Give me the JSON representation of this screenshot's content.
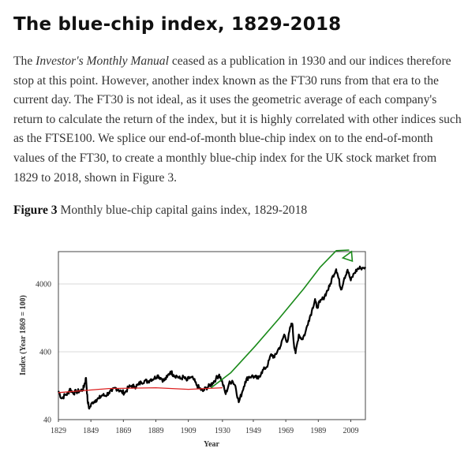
{
  "heading": "The blue-chip index, 1829-2018",
  "paragraph": {
    "p1": "The ",
    "em": "Investor's Monthly Manual",
    "p2": " ceased as a publication in 1930 and our indices therefore stop at this point. However, another index known as the FT30 runs from that era to the current day. The FT30 is not ideal, as it uses the geometric average of each company's return to calculate the return of the index, but it is highly correlated with other indices such as the FTSE100. We splice our end-of-month blue-chip index on to the end-of-month values of the FT30, to create a monthly blue-chip index for the UK stock market from 1829 to 2018, shown in Figure 3."
  },
  "caption": {
    "label": "Figure 3",
    "text": " Monthly blue-chip capital gains index, 1829-2018"
  },
  "chart_data": {
    "type": "line",
    "title": "",
    "xlabel": "Year",
    "ylabel": "Index (Year 1869 = 100)",
    "xlim": [
      1829,
      2018
    ],
    "ylim": [
      40,
      12000
    ],
    "yscale": "log",
    "grid": "horizontal",
    "x_ticks": [
      "1829",
      "1849",
      "1869",
      "1889",
      "1909",
      "1930",
      "1949",
      "1969",
      "1989",
      "2009"
    ],
    "y_ticks": [
      "40",
      "400",
      "4000"
    ],
    "series": [
      {
        "color": "#000000",
        "x": [
          1829,
          1831,
          1833,
          1835,
          1836,
          1838,
          1840,
          1842,
          1844,
          1845,
          1846,
          1847,
          1848,
          1850,
          1852,
          1854,
          1856,
          1858,
          1860,
          1862,
          1864,
          1866,
          1868,
          1870,
          1872,
          1874,
          1876,
          1878,
          1880,
          1882,
          1884,
          1886,
          1888,
          1890,
          1892,
          1894,
          1896,
          1898,
          1900,
          1902,
          1904,
          1906,
          1908,
          1910,
          1912,
          1914,
          1916,
          1918,
          1920,
          1922,
          1924,
          1926,
          1928,
          1930,
          1932,
          1934,
          1936,
          1938,
          1940,
          1942,
          1944,
          1946,
          1948,
          1950,
          1952,
          1954,
          1956,
          1958,
          1960,
          1962,
          1964,
          1966,
          1968,
          1970,
          1972,
          1973,
          1974,
          1975,
          1977,
          1979,
          1981,
          1983,
          1985,
          1987,
          1988,
          1990,
          1992,
          1994,
          1996,
          1998,
          2000,
          2001,
          2003,
          2005,
          2007,
          2009,
          2011,
          2013,
          2015,
          2018
        ],
        "y": [
          106,
          82,
          92,
          97,
          114,
          99,
          103,
          106,
          110,
          130,
          165,
          75,
          58,
          72,
          78,
          82,
          92,
          90,
          100,
          105,
          118,
          110,
          102,
          100,
          118,
          126,
          122,
          130,
          142,
          150,
          146,
          158,
          162,
          180,
          165,
          150,
          170,
          205,
          182,
          175,
          160,
          170,
          150,
          168,
          160,
          130,
          115,
          105,
          118,
          125,
          140,
          160,
          185,
          140,
          95,
          135,
          150,
          125,
          72,
          100,
          145,
          170,
          175,
          170,
          160,
          200,
          225,
          260,
          370,
          330,
          420,
          500,
          720,
          560,
          950,
          1040,
          520,
          380,
          720,
          610,
          760,
          1150,
          1600,
          2400,
          1800,
          2150,
          2450,
          3000,
          3700,
          5300,
          6600,
          5400,
          3300,
          4900,
          6500,
          4500,
          5700,
          6600,
          6900,
          7100
        ]
      },
      {
        "color": "#dd2222",
        "x": [
          1829,
          1860,
          1889,
          1909,
          1930
        ],
        "y": [
          100,
          115,
          118,
          112,
          118
        ]
      },
      {
        "color": "#1a8a1a",
        "x": [
          1923,
          1935,
          1950,
          1965,
          1980,
          1990,
          2000,
          2008
        ],
        "y": [
          118,
          195,
          480,
          1250,
          3400,
          7000,
          12400,
          16000
        ]
      }
    ]
  }
}
